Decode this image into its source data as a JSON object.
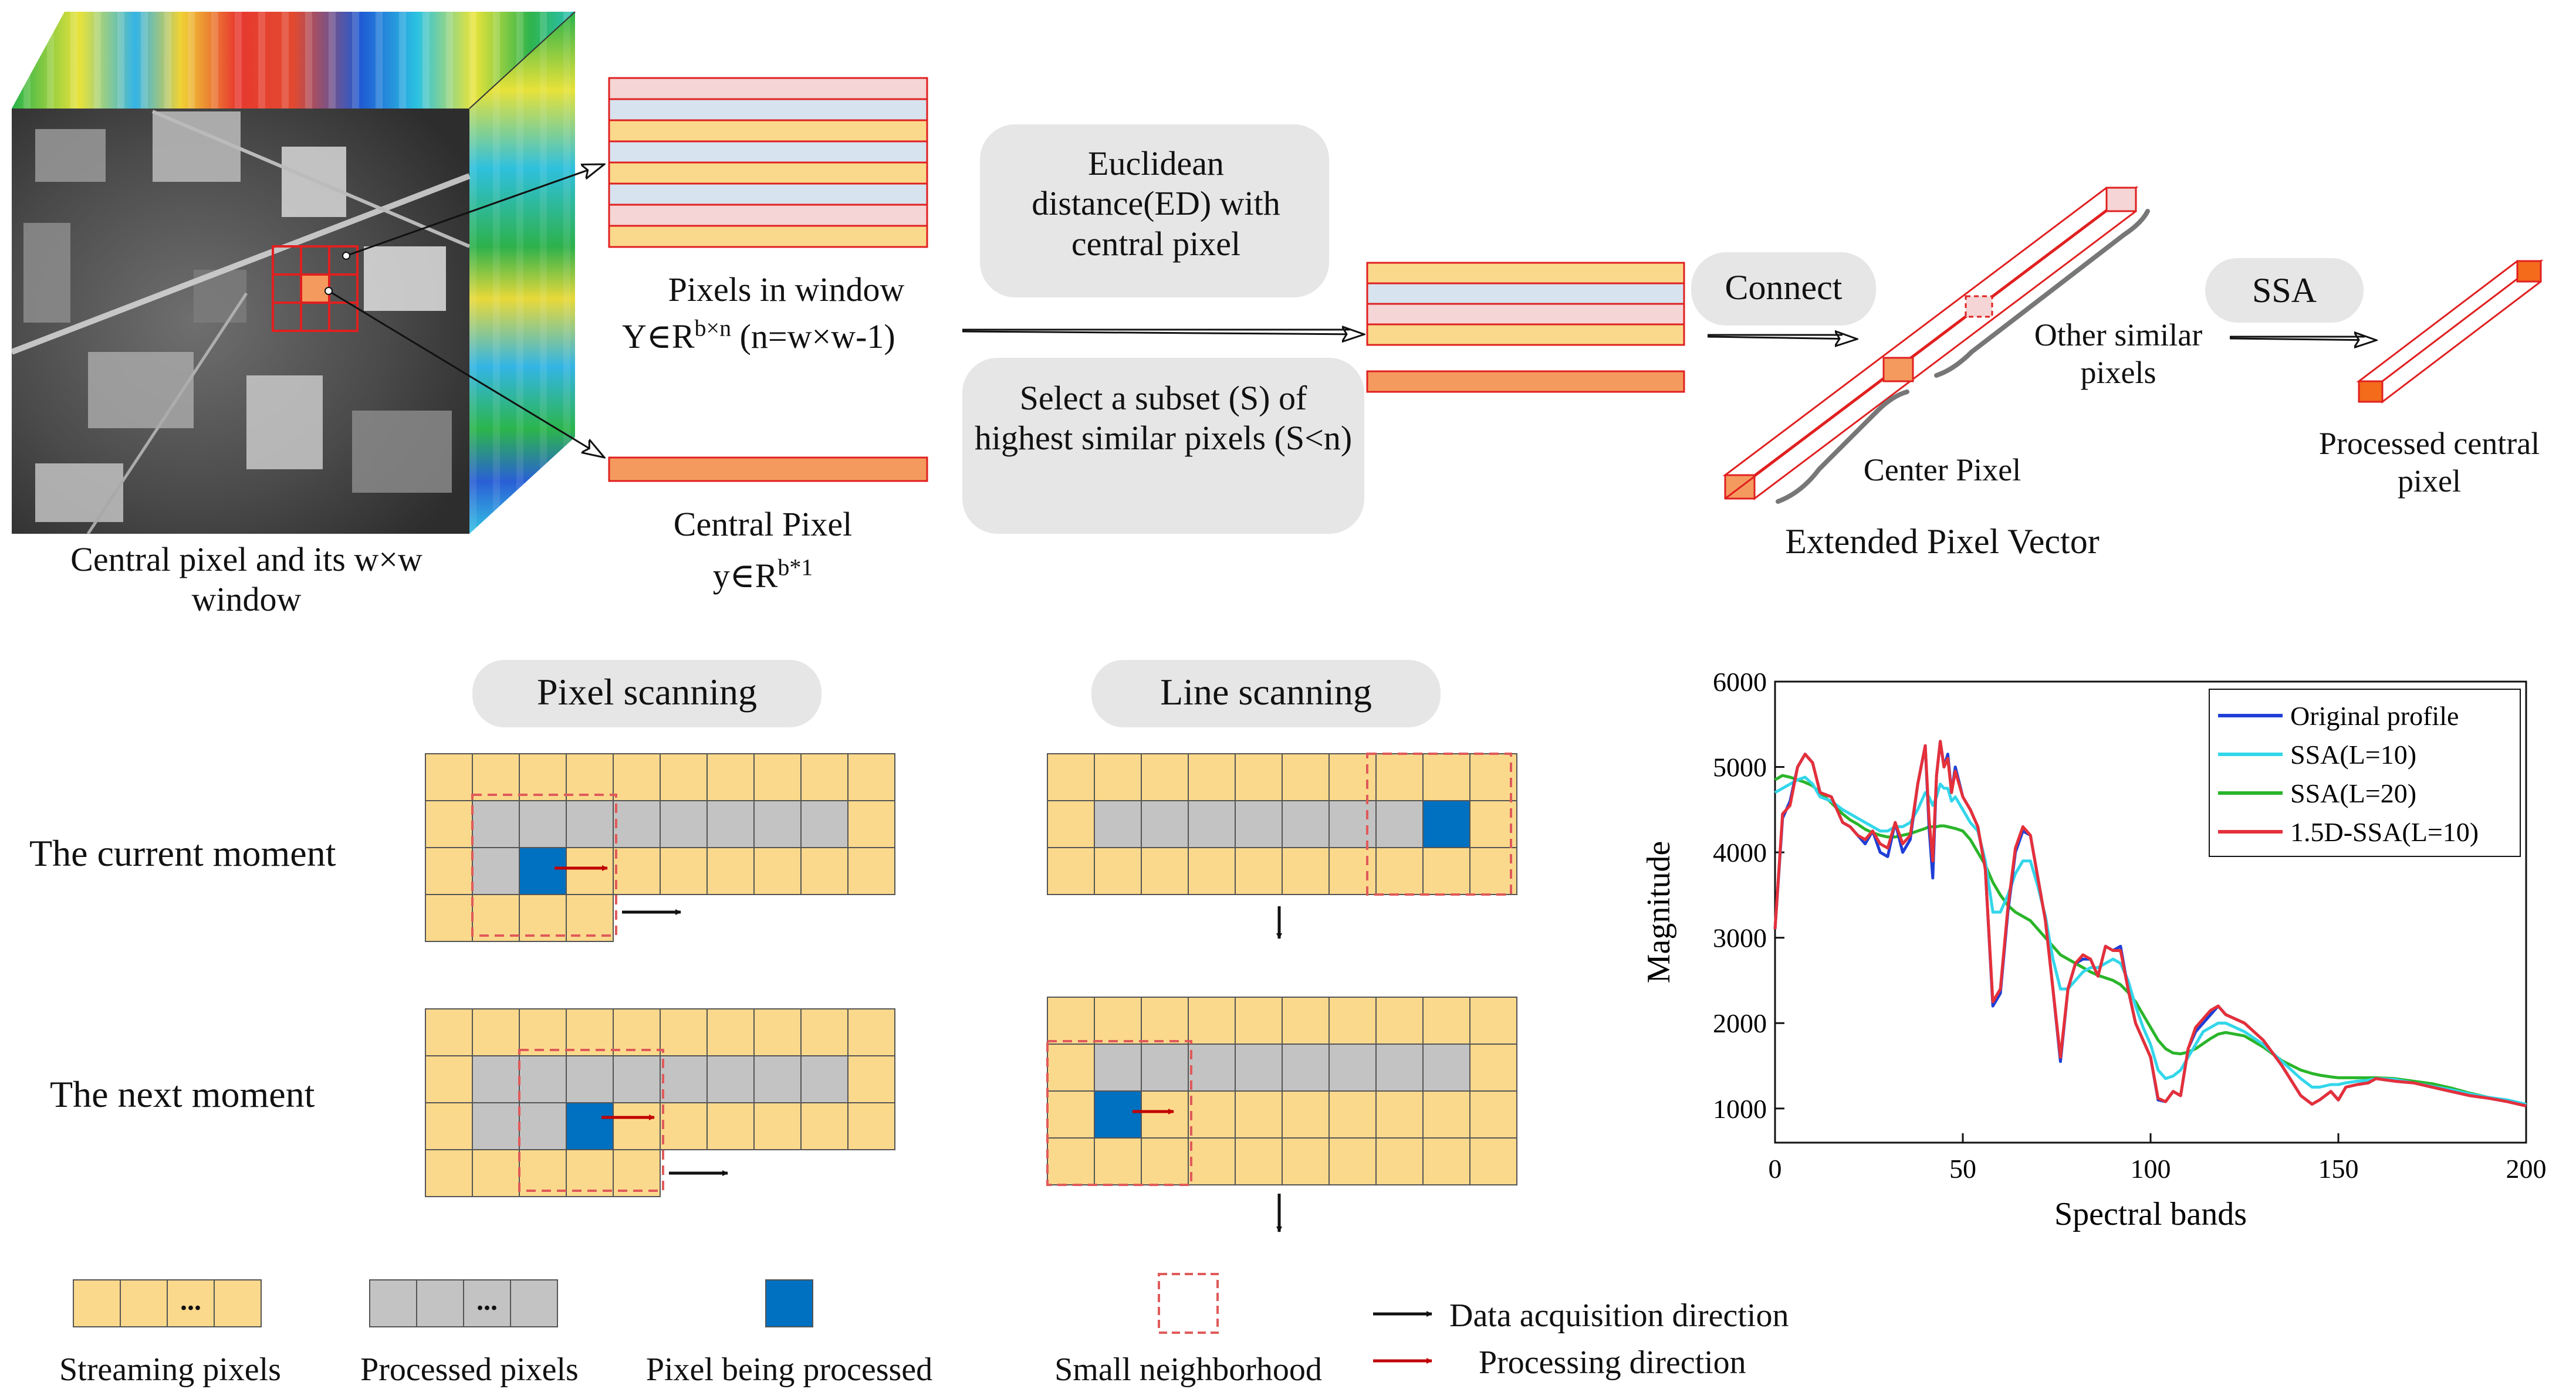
{
  "top": {
    "cube_caption": "Central pixel and its w×w window",
    "pixels_in_window_title": "Pixels in window",
    "window_formula_main": "Y∈R",
    "window_formula_sup": "b×n",
    "window_formula_tail": "(n=w×w-1)",
    "central_pixel_title": "Central Pixel",
    "central_formula_main": "y∈R",
    "central_formula_sup": "b*1",
    "ed_box": "Euclidean distance(ED) with central pixel",
    "subset_box": "Select a subset (S) of highest similar pixels (S<n)",
    "connect_label": "Connect",
    "ssa_label": "SSA",
    "other_similar_label": "Other similar pixels",
    "center_pixel_label": "Center Pixel",
    "extended_vector_label": "Extended Pixel Vector",
    "processed_label": "Processed central pixel"
  },
  "scan": {
    "pixel_scanning_title": "Pixel scanning",
    "line_scanning_title": "Line scanning",
    "current_moment": "The current moment",
    "next_moment": "The next moment"
  },
  "legend": {
    "streaming": "Streaming pixels",
    "processed": "Processed pixels",
    "being_processed": "Pixel being processed",
    "small_neighborhood": "Small neighborhood",
    "data_acq": "Data acquisition direction",
    "processing_dir": "Processing direction",
    "ellipsis": "..."
  },
  "colors": {
    "streaming": "#fbd98c",
    "processed": "#c3c3c3",
    "being_processed": "#0070c0",
    "neighborhood": "#e05a5a",
    "orange": "#f59a5e",
    "light_blue": "#d7e3ee",
    "pink": "#f5d5d5",
    "pill": "#e6e6e6"
  },
  "chart_data": {
    "type": "line",
    "xlabel": "Spectral bands",
    "ylabel": "Magnitude",
    "xlim": [
      0,
      200
    ],
    "ylim": [
      600,
      6000
    ],
    "xticks": [
      0,
      50,
      100,
      150,
      200
    ],
    "yticks": [
      1000,
      2000,
      3000,
      4000,
      5000,
      6000
    ],
    "legend_position": "top-right",
    "x": [
      0,
      2,
      4,
      6,
      8,
      10,
      12,
      15,
      18,
      20,
      22,
      24,
      26,
      28,
      30,
      32,
      34,
      36,
      38,
      40,
      41,
      42,
      43,
      44,
      45,
      46,
      47,
      48,
      50,
      52,
      54,
      56,
      58,
      60,
      62,
      64,
      66,
      68,
      70,
      72,
      74,
      76,
      78,
      80,
      82,
      84,
      86,
      88,
      90,
      92,
      94,
      96,
      98,
      100,
      102,
      104,
      106,
      108,
      110,
      112,
      114,
      116,
      118,
      120,
      125,
      130,
      135,
      140,
      143,
      145,
      148,
      150,
      152,
      155,
      158,
      160,
      165,
      170,
      175,
      180,
      185,
      190,
      195,
      200
    ],
    "series": [
      {
        "name": "Original profile",
        "color": "#1f3fd6",
        "values": [
          3100,
          4400,
          4600,
          5000,
          5150,
          5050,
          4700,
          4650,
          4350,
          4300,
          4200,
          4100,
          4250,
          4000,
          3950,
          4350,
          4000,
          4150,
          4800,
          5250,
          4300,
          3700,
          4900,
          5300,
          5000,
          5150,
          4700,
          5000,
          4650,
          4500,
          4300,
          3800,
          2200,
          2350,
          3300,
          4000,
          4250,
          4200,
          3700,
          3200,
          2400,
          1550,
          2400,
          2700,
          2750,
          2750,
          2550,
          2900,
          2850,
          2900,
          2400,
          2000,
          1800,
          1600,
          1100,
          1080,
          1200,
          1150,
          1700,
          1900,
          2000,
          2100,
          2200,
          2100,
          2000,
          1800,
          1500,
          1150,
          1050,
          1100,
          1200,
          1100,
          1250,
          1280,
          1300,
          1350,
          1320,
          1300,
          1250,
          1200,
          1150,
          1120,
          1080,
          1030
        ]
      },
      {
        "name": "SSA(L=10)",
        "color": "#33d6ea",
        "values": [
          4700,
          4750,
          4800,
          4850,
          4880,
          4800,
          4650,
          4600,
          4500,
          4450,
          4400,
          4350,
          4300,
          4250,
          4250,
          4300,
          4300,
          4350,
          4500,
          4700,
          4650,
          4550,
          4650,
          4800,
          4750,
          4750,
          4600,
          4650,
          4500,
          4350,
          4250,
          3900,
          3300,
          3300,
          3500,
          3750,
          3900,
          3900,
          3600,
          3250,
          2750,
          2400,
          2400,
          2500,
          2600,
          2650,
          2650,
          2700,
          2750,
          2700,
          2500,
          2200,
          1950,
          1750,
          1450,
          1350,
          1380,
          1450,
          1600,
          1750,
          1900,
          1950,
          2000,
          2000,
          1900,
          1750,
          1550,
          1350,
          1250,
          1250,
          1280,
          1280,
          1300,
          1320,
          1330,
          1350,
          1340,
          1300,
          1260,
          1220,
          1170,
          1130,
          1100,
          1050
        ]
      },
      {
        "name": "SSA(L=20)",
        "color": "#2ab52a",
        "values": [
          4850,
          4900,
          4880,
          4850,
          4820,
          4780,
          4700,
          4580,
          4450,
          4380,
          4330,
          4270,
          4230,
          4200,
          4180,
          4180,
          4200,
          4220,
          4250,
          4280,
          4300,
          4300,
          4300,
          4310,
          4310,
          4300,
          4290,
          4280,
          4250,
          4150,
          4000,
          3850,
          3650,
          3500,
          3380,
          3300,
          3250,
          3200,
          3100,
          3000,
          2900,
          2800,
          2750,
          2700,
          2650,
          2600,
          2560,
          2530,
          2500,
          2450,
          2360,
          2250,
          2100,
          1950,
          1800,
          1700,
          1650,
          1640,
          1660,
          1700,
          1760,
          1820,
          1870,
          1890,
          1850,
          1720,
          1560,
          1450,
          1410,
          1390,
          1370,
          1360,
          1360,
          1360,
          1360,
          1360,
          1350,
          1320,
          1290,
          1240,
          1180,
          1130,
          1090,
          1040
        ]
      },
      {
        "name": "1.5D-SSA(L=10)",
        "color": "#e5303a",
        "values": [
          3100,
          4450,
          4550,
          5000,
          5150,
          5050,
          4700,
          4650,
          4350,
          4300,
          4200,
          4150,
          4250,
          4100,
          4050,
          4350,
          4100,
          4200,
          4800,
          5250,
          4400,
          3900,
          4900,
          5300,
          5000,
          5100,
          4700,
          4950,
          4650,
          4500,
          4300,
          3800,
          2250,
          2400,
          3350,
          4050,
          4300,
          4200,
          3700,
          3200,
          2400,
          1600,
          2400,
          2700,
          2800,
          2750,
          2550,
          2900,
          2850,
          2850,
          2400,
          2000,
          1800,
          1600,
          1120,
          1080,
          1200,
          1150,
          1700,
          1950,
          2050,
          2150,
          2200,
          2100,
          2000,
          1800,
          1500,
          1150,
          1050,
          1100,
          1200,
          1100,
          1250,
          1280,
          1300,
          1350,
          1320,
          1300,
          1250,
          1200,
          1150,
          1120,
          1080,
          1030
        ]
      }
    ]
  }
}
